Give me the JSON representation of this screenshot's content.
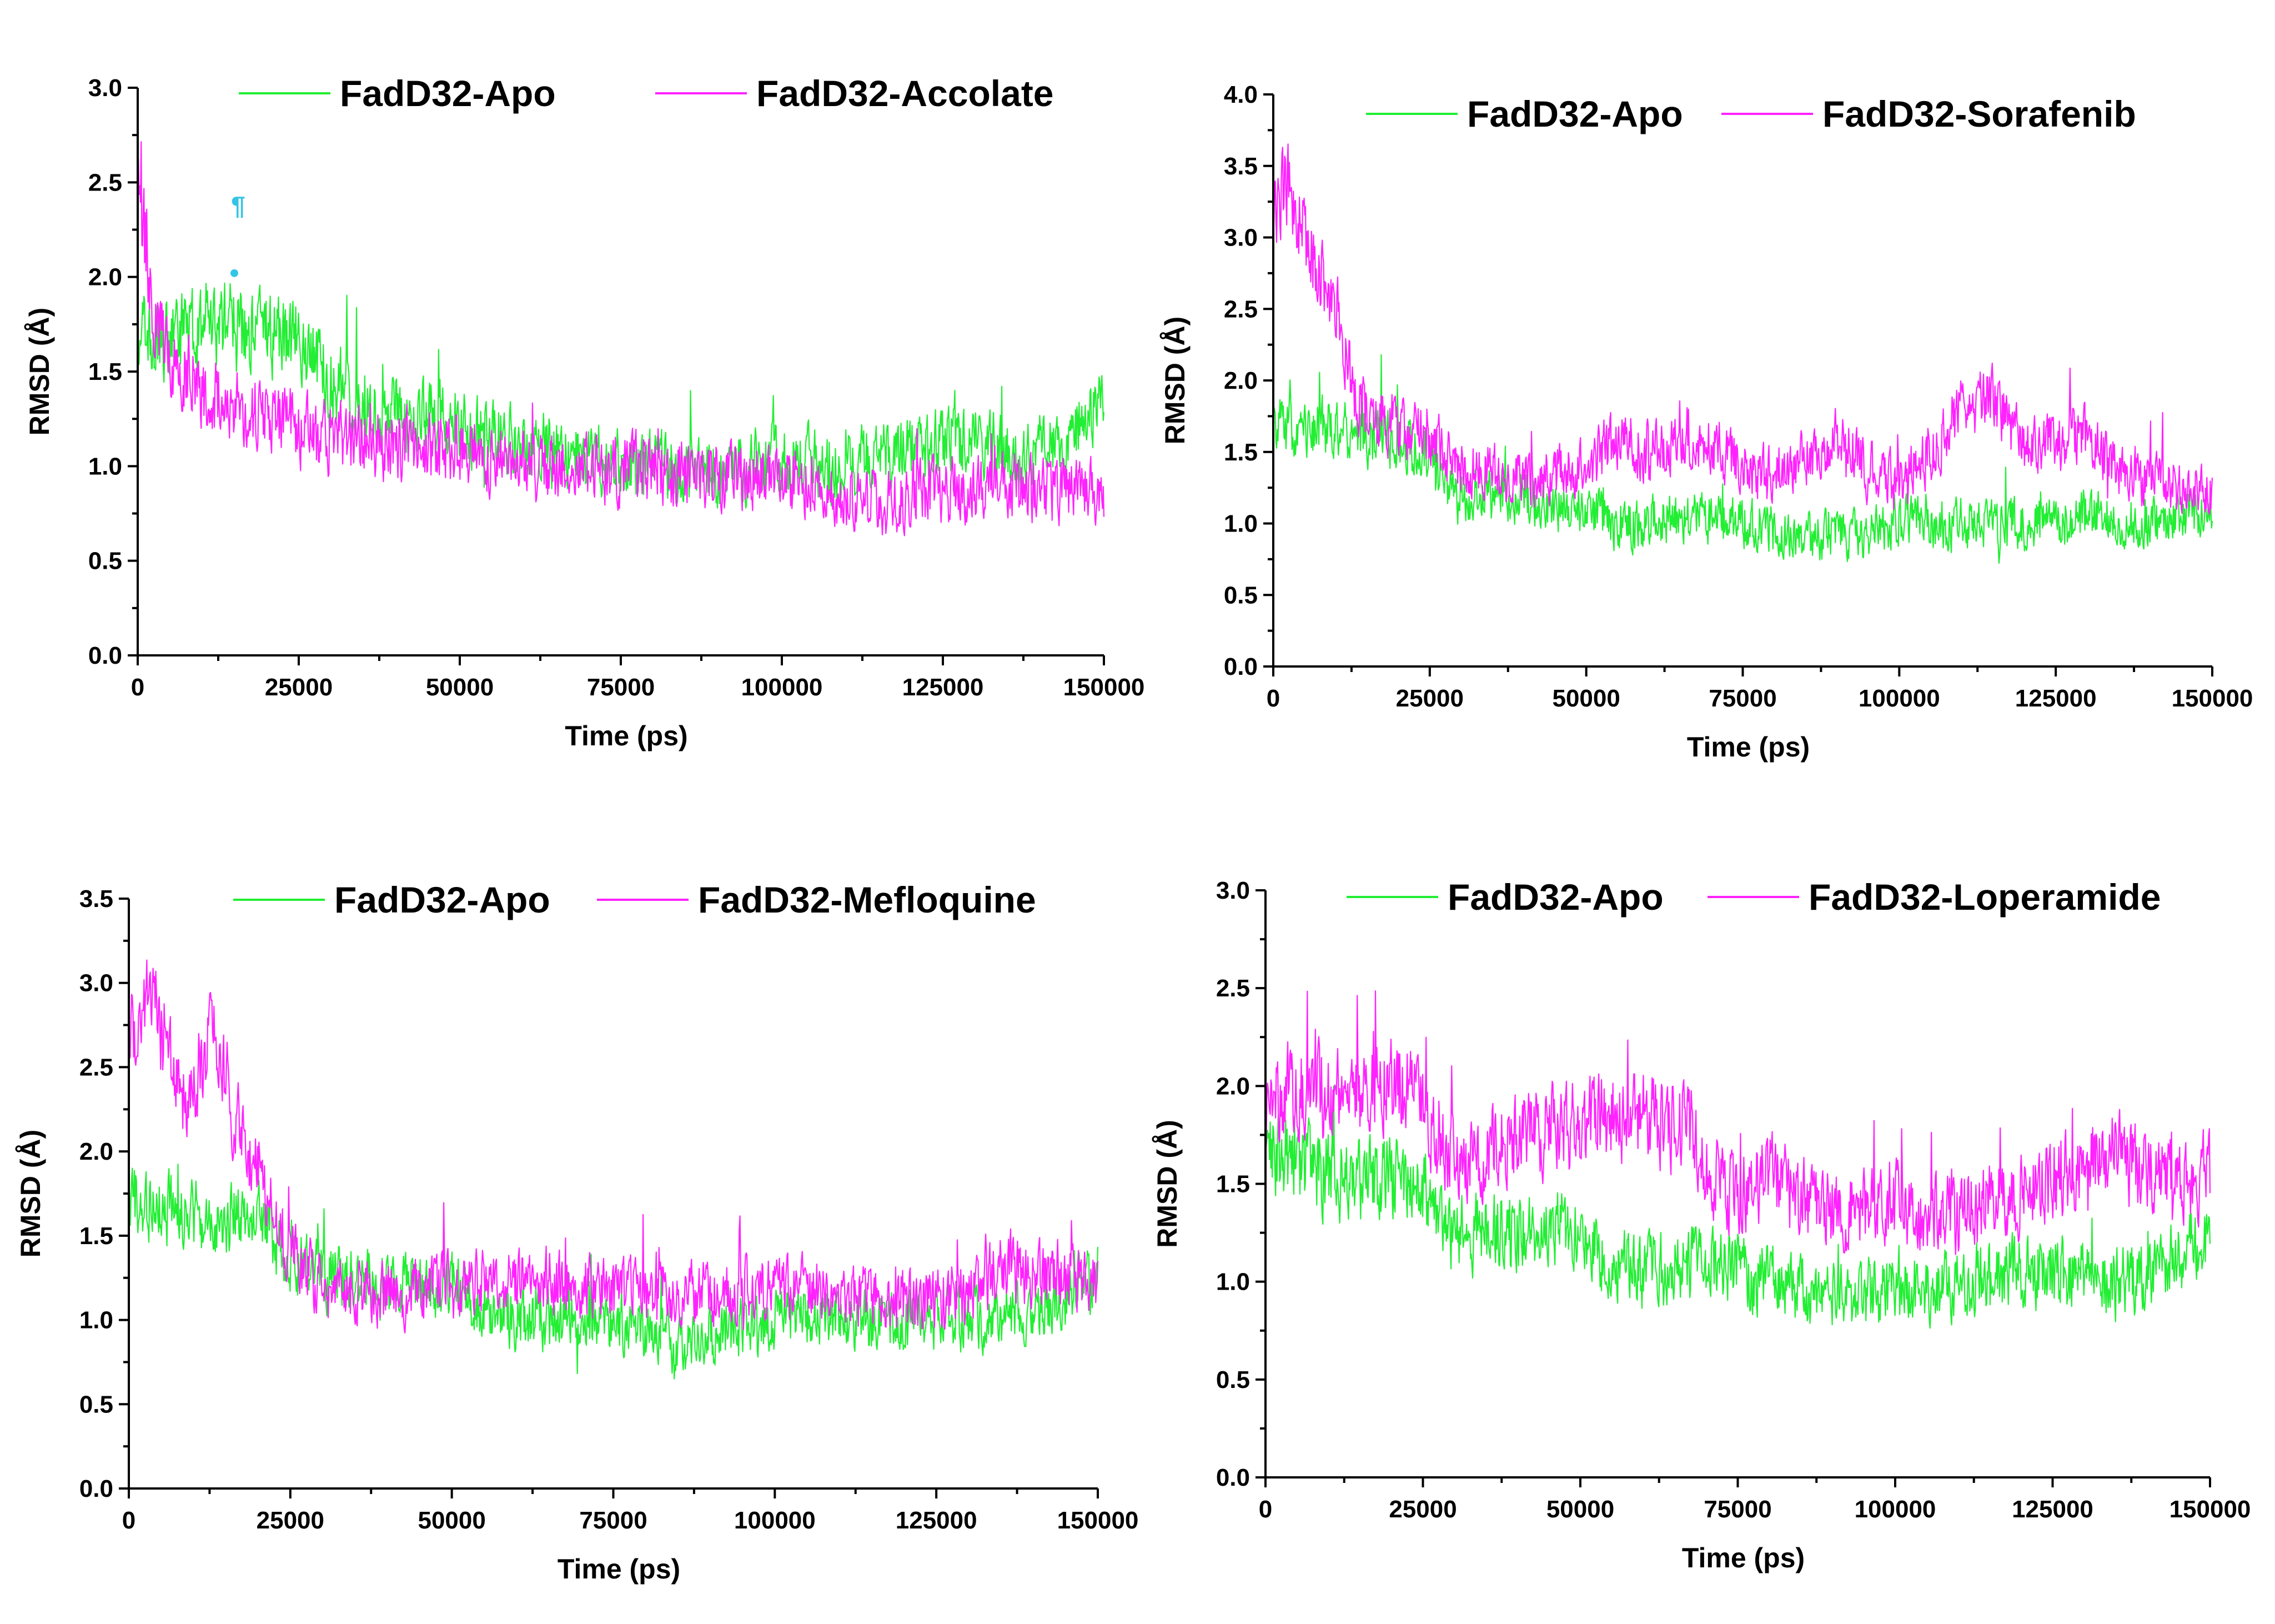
{
  "colors": {
    "apo": "#22ee33",
    "ligand": "#ff22ff",
    "annotation": "#33c4e6",
    "axis": "#000000"
  },
  "chart_data": [
    {
      "type": "line",
      "xlabel": "Time (ps)",
      "ylabel": "RMSD (Å)",
      "xlim": [
        0,
        150000
      ],
      "ylim": [
        0,
        3.0
      ],
      "xticks": [
        0,
        25000,
        50000,
        75000,
        100000,
        125000,
        150000
      ],
      "xtick_labels": [
        "0",
        "25000",
        "50000",
        "75000",
        "100000",
        "125000",
        "150000"
      ],
      "yticks": [
        0,
        0.5,
        1.0,
        1.5,
        2.0,
        2.5,
        3.0
      ],
      "ytick_labels": [
        "0.0",
        "0.5",
        "1.0",
        "1.5",
        "2.0",
        "2.5",
        "3.0"
      ],
      "legend_position": "top",
      "annotations": [
        "¶"
      ],
      "series": [
        {
          "name": "FadD32-Apo",
          "color": "#22ee33",
          "x": [
            0,
            2000,
            5000,
            10000,
            15000,
            20000,
            25000,
            30000,
            35000,
            40000,
            47000,
            50000,
            60000,
            70000,
            80000,
            90000,
            100000,
            110000,
            120000,
            125000,
            130000,
            135000,
            140000,
            145000,
            150000
          ],
          "y": [
            1.7,
            1.65,
            1.7,
            1.72,
            1.75,
            1.7,
            1.68,
            1.45,
            1.35,
            1.3,
            1.3,
            1.2,
            1.1,
            1.05,
            1.0,
            0.95,
            1.05,
            1.0,
            1.1,
            1.15,
            1.15,
            1.05,
            1.1,
            1.2,
            1.35
          ]
        },
        {
          "name": "FadD32-Accolate",
          "color": "#ff22ff",
          "x": [
            0,
            1000,
            3000,
            5000,
            10000,
            15000,
            20000,
            25000,
            30000,
            40000,
            50000,
            60000,
            70000,
            80000,
            90000,
            100000,
            110000,
            115000,
            120000,
            130000,
            140000,
            150000
          ],
          "y": [
            2.4,
            2.2,
            1.75,
            1.6,
            1.4,
            1.3,
            1.25,
            1.2,
            1.15,
            1.12,
            1.1,
            1.0,
            0.98,
            0.98,
            0.95,
            0.95,
            0.85,
            0.8,
            0.85,
            0.88,
            0.88,
            0.88
          ]
        }
      ]
    },
    {
      "type": "line",
      "xlabel": "Time (ps)",
      "ylabel": "RMSD (Å)",
      "xlim": [
        0,
        150000
      ],
      "ylim": [
        0,
        4.0
      ],
      "xticks": [
        0,
        25000,
        50000,
        75000,
        100000,
        125000,
        150000
      ],
      "xtick_labels": [
        "0",
        "25000",
        "50000",
        "75000",
        "100000",
        "125000",
        "150000"
      ],
      "yticks": [
        0,
        0.5,
        1.0,
        1.5,
        2.0,
        2.5,
        3.0,
        3.5,
        4.0
      ],
      "ytick_labels": [
        "0.0",
        "0.5",
        "1.0",
        "1.5",
        "2.0",
        "2.5",
        "3.0",
        "3.5",
        "4.0"
      ],
      "legend_position": "top",
      "series": [
        {
          "name": "FadD32-Apo",
          "color": "#22ee33",
          "x": [
            0,
            5000,
            10000,
            15000,
            20000,
            25000,
            28000,
            35000,
            45000,
            55000,
            65000,
            75000,
            85000,
            90000,
            100000,
            110000,
            120000,
            130000,
            140000,
            150000
          ],
          "y": [
            1.7,
            1.65,
            1.7,
            1.6,
            1.55,
            1.5,
            1.2,
            1.2,
            1.15,
            1.0,
            1.05,
            1.0,
            0.9,
            0.9,
            1.0,
            1.0,
            1.0,
            1.05,
            1.0,
            1.1
          ]
        },
        {
          "name": "FadD32-Sorafenib",
          "color": "#ff22ff",
          "x": [
            0,
            2000,
            5000,
            8000,
            10000,
            13000,
            15000,
            20000,
            25000,
            30000,
            40000,
            50000,
            55000,
            60000,
            70000,
            80000,
            90000,
            95000,
            100000,
            105000,
            110000,
            115000,
            120000,
            125000,
            130000,
            135000,
            140000,
            145000,
            150000
          ],
          "y": [
            3.1,
            3.4,
            3.0,
            2.7,
            2.5,
            1.9,
            1.75,
            1.7,
            1.6,
            1.4,
            1.3,
            1.4,
            1.6,
            1.5,
            1.55,
            1.3,
            1.6,
            1.4,
            1.3,
            1.5,
            1.8,
            1.9,
            1.5,
            1.6,
            1.6,
            1.4,
            1.3,
            1.25,
            1.2
          ]
        }
      ]
    },
    {
      "type": "line",
      "xlabel": "Time (ps)",
      "ylabel": "RMSD (Å)",
      "xlim": [
        0,
        150000
      ],
      "ylim": [
        0,
        3.5
      ],
      "xticks": [
        0,
        25000,
        50000,
        75000,
        100000,
        125000,
        150000
      ],
      "xtick_labels": [
        "0",
        "25000",
        "50000",
        "75000",
        "100000",
        "125000",
        "150000"
      ],
      "yticks": [
        0,
        0.5,
        1.0,
        1.5,
        2.0,
        2.5,
        3.0,
        3.5
      ],
      "ytick_labels": [
        "0.0",
        "0.5",
        "1.0",
        "1.5",
        "2.0",
        "2.5",
        "3.0",
        "3.5"
      ],
      "legend_position": "top",
      "series": [
        {
          "name": "FadD32-Apo",
          "color": "#22ee33",
          "x": [
            0,
            5000,
            10000,
            15000,
            20000,
            25000,
            30000,
            40000,
            50000,
            60000,
            70000,
            80000,
            85000,
            90000,
            100000,
            110000,
            120000,
            130000,
            140000,
            150000
          ],
          "y": [
            1.7,
            1.65,
            1.6,
            1.6,
            1.6,
            1.35,
            1.25,
            1.2,
            1.2,
            1.0,
            1.0,
            0.95,
            0.85,
            0.9,
            1.0,
            1.0,
            1.0,
            1.0,
            1.05,
            1.25
          ]
        },
        {
          "name": "FadD32-Mefloquine",
          "color": "#ff22ff",
          "x": [
            0,
            2000,
            4000,
            8000,
            12000,
            14000,
            16000,
            20000,
            25000,
            30000,
            40000,
            50000,
            60000,
            70000,
            80000,
            90000,
            100000,
            110000,
            120000,
            130000,
            135000,
            140000,
            150000
          ],
          "y": [
            2.6,
            2.8,
            2.9,
            2.3,
            2.6,
            2.7,
            2.2,
            1.9,
            1.4,
            1.2,
            1.15,
            1.2,
            1.25,
            1.2,
            1.15,
            1.15,
            1.2,
            1.15,
            1.1,
            1.15,
            1.35,
            1.25,
            1.2
          ]
        }
      ]
    },
    {
      "type": "line",
      "xlabel": "Time (ps)",
      "ylabel": "RMSD (Å)",
      "xlim": [
        0,
        150000
      ],
      "ylim": [
        0,
        3.0
      ],
      "xticks": [
        0,
        25000,
        50000,
        75000,
        100000,
        125000,
        150000
      ],
      "xtick_labels": [
        "0",
        "25000",
        "50000",
        "75000",
        "100000",
        "125000",
        "150000"
      ],
      "yticks": [
        0,
        0.5,
        1.0,
        1.5,
        2.0,
        2.5,
        3.0
      ],
      "ytick_labels": [
        "0.0",
        "0.5",
        "1.0",
        "1.5",
        "2.0",
        "2.5",
        "3.0"
      ],
      "legend_position": "top",
      "series": [
        {
          "name": "FadD32-Apo",
          "color": "#22ee33",
          "x": [
            0,
            5000,
            10000,
            15000,
            20000,
            25000,
            28000,
            35000,
            45000,
            50000,
            55000,
            60000,
            70000,
            80000,
            90000,
            100000,
            110000,
            120000,
            130000,
            135000,
            140000,
            145000,
            150000
          ],
          "y": [
            1.7,
            1.6,
            1.55,
            1.5,
            1.55,
            1.5,
            1.25,
            1.25,
            1.3,
            1.25,
            1.1,
            1.05,
            1.1,
            1.0,
            0.9,
            0.95,
            1.0,
            1.05,
            1.05,
            1.0,
            1.0,
            1.15,
            1.25
          ]
        },
        {
          "name": "FadD32-Loperamide",
          "color": "#ff22ff",
          "x": [
            0,
            2000,
            5000,
            10000,
            15000,
            20000,
            25000,
            28000,
            32000,
            40000,
            50000,
            55000,
            60000,
            65000,
            68000,
            70000,
            75000,
            80000,
            85000,
            90000,
            100000,
            110000,
            120000,
            130000,
            135000,
            140000,
            145000,
            150000
          ],
          "y": [
            1.8,
            1.95,
            2.0,
            1.95,
            1.95,
            2.05,
            1.9,
            1.7,
            1.6,
            1.75,
            1.8,
            1.85,
            1.85,
            1.8,
            1.8,
            1.55,
            1.45,
            1.55,
            1.4,
            1.35,
            1.4,
            1.35,
            1.45,
            1.6,
            1.65,
            1.55,
            1.5,
            1.55
          ]
        }
      ]
    }
  ]
}
